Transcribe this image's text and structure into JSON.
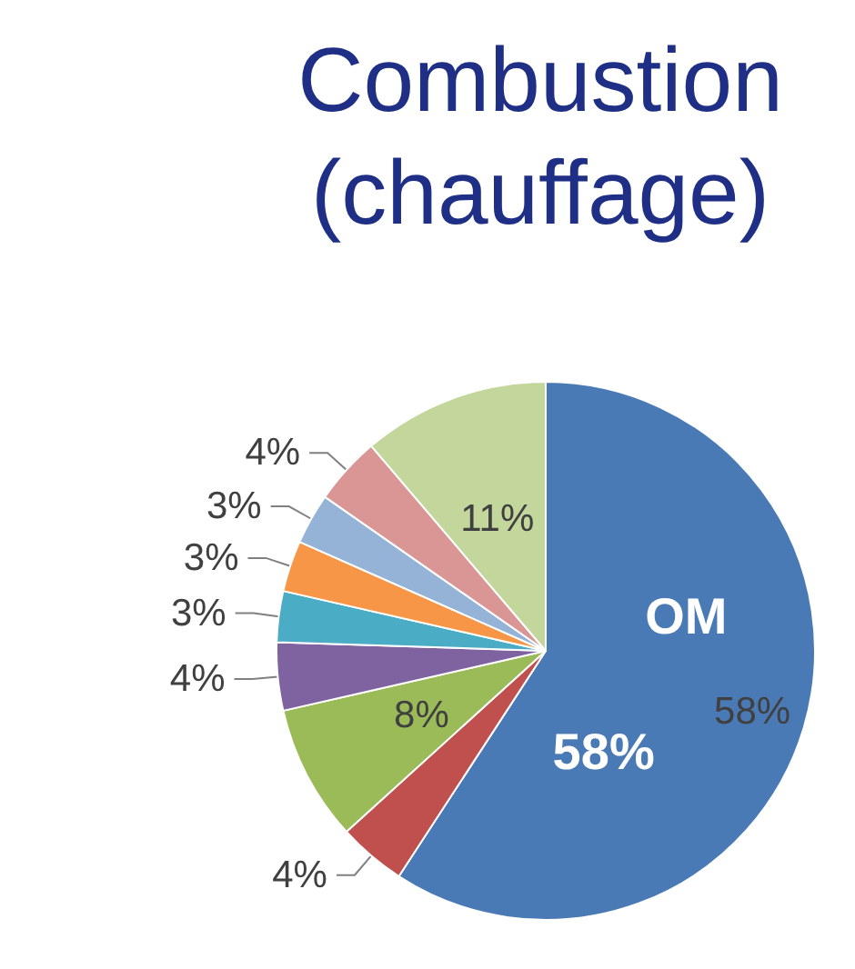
{
  "chart_data": {
    "type": "pie",
    "title": "Combustion\n(chauffage)",
    "categories": [
      "OM",
      null,
      null,
      null,
      null,
      null,
      null,
      null,
      null
    ],
    "values": [
      58,
      4,
      8,
      4,
      3,
      3,
      3,
      4,
      11
    ],
    "value_labels": [
      "58%",
      "4%",
      "8%",
      "4%",
      "3%",
      "3%",
      "3%",
      "4%",
      "11%"
    ],
    "colors": [
      "#4a7ab5",
      "#c0504d",
      "#9bbb59",
      "#7f62a0",
      "#4bacc6",
      "#f79646",
      "#95b3d7",
      "#d99694",
      "#c3d69b"
    ],
    "annotations": [
      "58%"
    ],
    "legend": false
  }
}
